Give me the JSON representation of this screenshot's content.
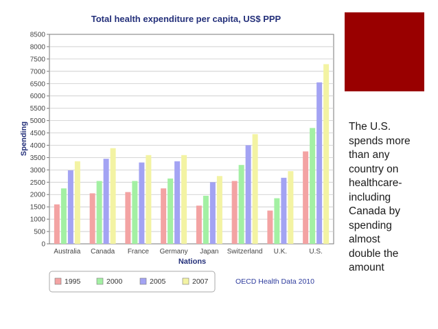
{
  "chart_data": {
    "type": "bar",
    "title": "Total health expenditure per capita, US$ PPP",
    "xlabel": "Nations",
    "ylabel": "Spending",
    "ylim": [
      0,
      8500
    ],
    "yticks": [
      0,
      500,
      1000,
      1500,
      2000,
      2500,
      3000,
      3500,
      4000,
      4500,
      5000,
      5500,
      6000,
      6500,
      7000,
      7500,
      8000,
      8500
    ],
    "grid": true,
    "legend_position": "bottom-left",
    "categories": [
      "Australia",
      "Canada",
      "France",
      "Germany",
      "Japan",
      "Switzerland",
      "U.K.",
      "U.S."
    ],
    "series": [
      {
        "name": "1995",
        "color": "#f3a3a3",
        "values": [
          1600,
          2050,
          2100,
          2250,
          1550,
          2550,
          1350,
          3750
        ]
      },
      {
        "name": "2000",
        "color": "#a3f0a3",
        "values": [
          2250,
          2550,
          2550,
          2650,
          1950,
          3200,
          1850,
          4700
        ]
      },
      {
        "name": "2005",
        "color": "#a3a3f3",
        "values": [
          2980,
          3450,
          3300,
          3350,
          2500,
          4000,
          2680,
          6550
        ]
      },
      {
        "name": "2007",
        "color": "#f3f3a3",
        "values": [
          3350,
          3880,
          3600,
          3600,
          2750,
          4450,
          2950,
          7290
        ]
      }
    ],
    "source_note": "OECD Health Data 2010"
  },
  "colors": {
    "accent": "#990000",
    "title": "#24307a",
    "source_note": "#2c3a9c",
    "axis_text": "#444444",
    "grid": "#c8c8c8"
  },
  "side_note": "The U.S.\nspends more\nthan any\ncountry on\nhealthcare-\nincluding\nCanada by\nspending\nalmost\ndouble the\namount"
}
